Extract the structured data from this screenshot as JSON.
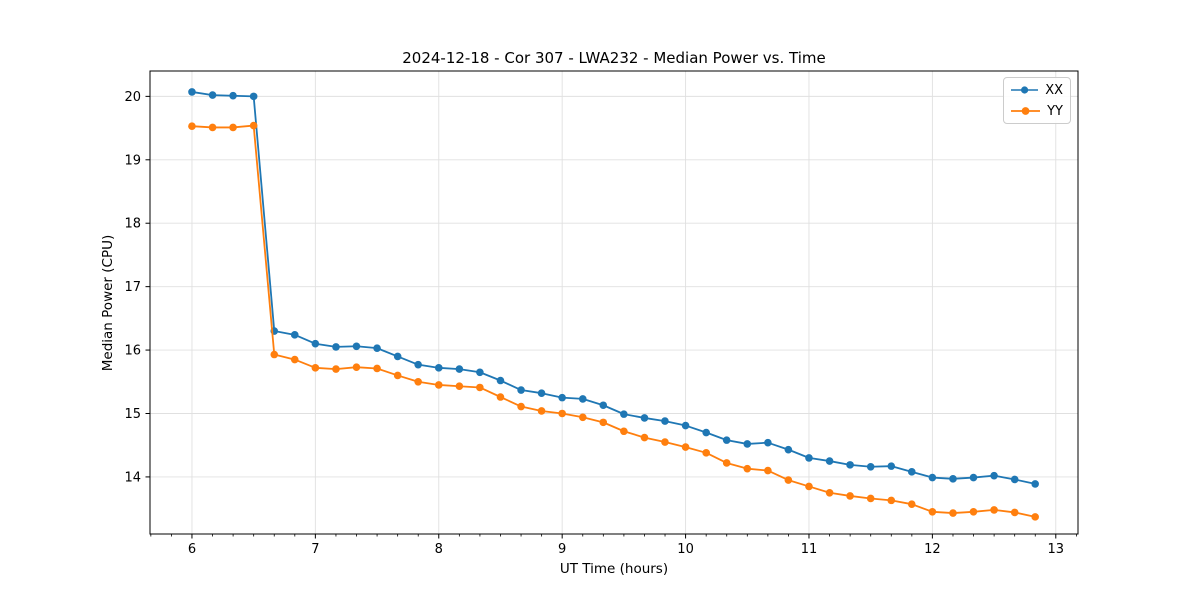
{
  "figure": {
    "background": "#ffffff",
    "spine_color": "#000000",
    "grid_color": "#e0e0e0"
  },
  "chart_data": {
    "type": "line",
    "title": "2024-12-18 - Cor 307 - LWA232 - Median Power vs. Time",
    "xlabel": "UT Time (hours)",
    "ylabel": "Median Power (CPU)",
    "xlim": [
      5.66,
      13.18
    ],
    "ylim": [
      13.1,
      20.4
    ],
    "x_major_ticks": [
      6,
      7,
      8,
      9,
      10,
      11,
      12,
      13
    ],
    "x_minor_interval": 0.16667,
    "y_major_ticks": [
      14,
      15,
      16,
      17,
      18,
      19,
      20
    ],
    "grid": true,
    "legend_position": "upper right",
    "x": [
      6.0,
      6.167,
      6.333,
      6.5,
      6.667,
      6.833,
      7.0,
      7.167,
      7.333,
      7.5,
      7.667,
      7.833,
      8.0,
      8.167,
      8.333,
      8.5,
      8.667,
      8.833,
      9.0,
      9.167,
      9.333,
      9.5,
      9.667,
      9.833,
      10.0,
      10.167,
      10.333,
      10.5,
      10.667,
      10.833,
      11.0,
      11.167,
      11.333,
      11.5,
      11.667,
      11.833,
      12.0,
      12.167,
      12.333,
      12.5,
      12.667,
      12.833
    ],
    "series": [
      {
        "name": "XX",
        "color": "#1f77b4",
        "values": [
          20.07,
          20.02,
          20.01,
          20.0,
          16.3,
          16.24,
          16.1,
          16.05,
          16.06,
          16.03,
          15.9,
          15.77,
          15.72,
          15.7,
          15.65,
          15.52,
          15.37,
          15.32,
          15.25,
          15.23,
          15.13,
          14.99,
          14.93,
          14.88,
          14.81,
          14.7,
          14.58,
          14.52,
          14.54,
          14.43,
          14.3,
          14.25,
          14.19,
          14.16,
          14.17,
          14.08,
          13.99,
          13.97,
          13.99,
          14.02,
          13.96,
          13.89
        ]
      },
      {
        "name": "YY",
        "color": "#ff7f0e",
        "values": [
          19.53,
          19.51,
          19.51,
          19.54,
          15.93,
          15.85,
          15.72,
          15.7,
          15.73,
          15.71,
          15.6,
          15.5,
          15.45,
          15.43,
          15.41,
          15.26,
          15.11,
          15.04,
          15.0,
          14.94,
          14.86,
          14.72,
          14.62,
          14.55,
          14.47,
          14.38,
          14.22,
          14.13,
          14.1,
          13.95,
          13.85,
          13.75,
          13.7,
          13.66,
          13.63,
          13.57,
          13.45,
          13.43,
          13.45,
          13.48,
          13.44,
          13.37
        ]
      }
    ]
  }
}
